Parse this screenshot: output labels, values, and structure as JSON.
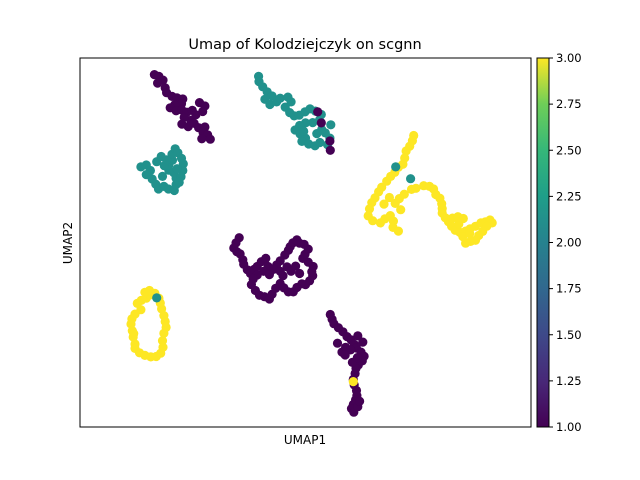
{
  "chart_data": {
    "type": "scatter",
    "title": "Umap of Kolodziejczyk on scgnn",
    "xlabel": "UMAP1",
    "ylabel": "UMAP2",
    "xlim": [
      0,
      100
    ],
    "ylim": [
      0,
      100
    ],
    "colorbar": {
      "range": [
        1.0,
        3.0
      ],
      "colormap": "viridis",
      "ticks": [
        "1.00",
        "1.25",
        "1.50",
        "1.75",
        "2.00",
        "2.25",
        "2.50",
        "2.75",
        "3.00"
      ]
    },
    "grid": false,
    "colors": {
      "class1": "#440154",
      "class2": "#21918c",
      "class3": "#fde725"
    },
    "clusters": [
      {
        "value": 1,
        "points": [
          [
            16.5,
            95.5
          ],
          [
            17.5,
            95.0
          ],
          [
            18.4,
            94.0
          ],
          [
            17.2,
            93.2
          ],
          [
            18.9,
            91.9
          ],
          [
            19.2,
            90.6
          ],
          [
            20.4,
            89.6
          ],
          [
            21.5,
            89.2
          ],
          [
            22.8,
            88.9
          ],
          [
            22.5,
            87.6
          ],
          [
            21.0,
            87.3
          ],
          [
            20.0,
            86.5
          ],
          [
            21.3,
            85.7
          ],
          [
            22.6,
            85.9
          ],
          [
            23.7,
            85.3
          ],
          [
            24.9,
            85.8
          ],
          [
            26.5,
            87.9
          ],
          [
            27.7,
            87.0
          ],
          [
            27.2,
            85.5
          ],
          [
            25.7,
            84.6
          ],
          [
            24.6,
            83.1
          ],
          [
            23.1,
            83.9
          ],
          [
            22.6,
            82.1
          ],
          [
            24.0,
            81.4
          ],
          [
            25.3,
            82.3
          ],
          [
            26.3,
            81.1
          ],
          [
            27.7,
            81.3
          ],
          [
            27.3,
            79.8
          ],
          [
            28.3,
            79.2
          ],
          [
            27.0,
            78.1
          ],
          [
            28.9,
            78.0
          ]
        ]
      },
      {
        "value": 2,
        "points": [
          [
            39.6,
            95.0
          ],
          [
            39.7,
            93.6
          ],
          [
            40.5,
            92.2
          ],
          [
            41.5,
            90.8
          ],
          [
            42.6,
            89.7
          ],
          [
            41.0,
            88.8
          ],
          [
            42.1,
            87.4
          ],
          [
            43.6,
            88.1
          ],
          [
            44.4,
            89.1
          ],
          [
            46.1,
            89.4
          ],
          [
            46.8,
            88.1
          ],
          [
            45.5,
            86.7
          ],
          [
            46.5,
            85.2
          ],
          [
            47.5,
            84.3
          ],
          [
            48.6,
            84.5
          ],
          [
            49.9,
            85.4
          ],
          [
            51.0,
            86.2
          ],
          [
            52.2,
            85.6
          ],
          [
            53.5,
            84.7
          ],
          [
            53.1,
            83.2
          ],
          [
            51.6,
            82.5
          ],
          [
            50.0,
            82.4
          ],
          [
            48.7,
            81.7
          ],
          [
            47.7,
            80.5
          ],
          [
            48.8,
            79.4
          ],
          [
            50.0,
            78.3
          ],
          [
            49.2,
            77.4
          ],
          [
            50.7,
            76.7
          ],
          [
            52.1,
            76.2
          ],
          [
            53.2,
            77.1
          ],
          [
            54.9,
            76.5
          ],
          [
            55.4,
            78.3
          ],
          [
            54.4,
            79.7
          ],
          [
            53.6,
            80.6
          ],
          [
            55.6,
            81.9
          ],
          [
            52.5,
            79.5
          ],
          [
            49.6,
            80.1
          ]
        ]
      },
      {
        "value": 1,
        "points": [
          [
            52.7,
            85.4
          ],
          [
            53.5,
            82.4
          ],
          [
            55.4,
            77.5
          ],
          [
            55.5,
            75.0
          ]
        ]
      },
      {
        "value": 2,
        "points": [
          [
            13.5,
            70.5
          ],
          [
            14.7,
            71.0
          ],
          [
            15.6,
            69.5
          ],
          [
            14.7,
            68.4
          ],
          [
            16.0,
            67.2
          ],
          [
            16.8,
            65.8
          ],
          [
            17.4,
            64.5
          ],
          [
            18.6,
            65.2
          ],
          [
            19.6,
            64.5
          ],
          [
            20.9,
            64.1
          ],
          [
            21.3,
            65.7
          ],
          [
            21.3,
            67.4
          ],
          [
            20.8,
            68.9
          ],
          [
            19.7,
            69.6
          ],
          [
            19.7,
            71.0
          ],
          [
            20.5,
            72.3
          ],
          [
            20.4,
            73.9
          ],
          [
            21.1,
            75.4
          ],
          [
            21.7,
            74.3
          ],
          [
            22.5,
            72.8
          ],
          [
            22.9,
            71.3
          ],
          [
            22.8,
            69.5
          ],
          [
            22.4,
            67.8
          ],
          [
            22.0,
            66.3
          ],
          [
            21.5,
            70.0
          ],
          [
            18.7,
            70.8
          ],
          [
            17.0,
            71.9
          ],
          [
            18.0,
            73.3
          ],
          [
            19.2,
            72.4
          ],
          [
            18.3,
            67.9
          ]
        ]
      },
      {
        "value": 1,
        "points": [
          [
            35.3,
            51.3
          ],
          [
            34.6,
            49.9
          ],
          [
            34.1,
            48.5
          ],
          [
            34.8,
            47.5
          ],
          [
            35.5,
            46.9
          ],
          [
            36.1,
            45.3
          ],
          [
            36.3,
            44.1
          ],
          [
            37.1,
            42.6
          ],
          [
            37.8,
            41.6
          ],
          [
            38.6,
            42.7
          ],
          [
            39.3,
            43.5
          ],
          [
            40.2,
            44.8
          ],
          [
            41.2,
            45.7
          ],
          [
            41.7,
            43.5
          ],
          [
            40.7,
            42.2
          ],
          [
            39.3,
            41.2
          ],
          [
            38.4,
            40.1
          ],
          [
            38.0,
            38.6
          ],
          [
            38.9,
            37.0
          ],
          [
            39.8,
            35.7
          ],
          [
            40.9,
            35.3
          ],
          [
            42.0,
            34.7
          ],
          [
            42.6,
            36.0
          ],
          [
            43.4,
            37.6
          ],
          [
            44.4,
            38.9
          ],
          [
            45.2,
            37.7
          ],
          [
            46.2,
            36.6
          ],
          [
            47.3,
            36.6
          ],
          [
            48.1,
            37.8
          ],
          [
            49.2,
            38.8
          ],
          [
            50.0,
            38.6
          ],
          [
            50.9,
            39.6
          ],
          [
            51.6,
            41.0
          ],
          [
            51.4,
            42.1
          ],
          [
            51.7,
            43.5
          ],
          [
            50.6,
            44.7
          ],
          [
            49.4,
            45.7
          ],
          [
            49.9,
            46.8
          ],
          [
            50.6,
            48.2
          ],
          [
            49.7,
            49.5
          ],
          [
            48.7,
            49.8
          ],
          [
            48.1,
            50.7
          ],
          [
            47.2,
            49.9
          ],
          [
            46.6,
            48.9
          ],
          [
            46.2,
            47.9
          ],
          [
            45.4,
            46.6
          ],
          [
            44.4,
            45.0
          ],
          [
            43.6,
            43.9
          ],
          [
            42.9,
            42.7
          ],
          [
            42.0,
            41.3
          ],
          [
            45.9,
            43.4
          ],
          [
            46.8,
            42.2
          ],
          [
            47.8,
            43.6
          ],
          [
            48.7,
            41.6
          ],
          [
            45.0,
            41.0
          ],
          [
            44.4,
            42.2
          ]
        ]
      },
      {
        "value": 3,
        "points": [
          [
            74.0,
            79.0
          ],
          [
            73.7,
            77.6
          ],
          [
            73.1,
            76.1
          ],
          [
            72.3,
            74.8
          ],
          [
            72.0,
            72.9
          ],
          [
            71.6,
            71.2
          ],
          [
            70.6,
            70.4
          ],
          [
            69.8,
            69.0
          ],
          [
            68.9,
            67.9
          ],
          [
            68.0,
            66.6
          ],
          [
            66.9,
            65.0
          ],
          [
            66.2,
            63.7
          ],
          [
            65.4,
            62.1
          ],
          [
            64.7,
            60.8
          ],
          [
            64.2,
            59.1
          ],
          [
            63.9,
            57.2
          ],
          [
            64.9,
            55.9
          ],
          [
            66.6,
            55.3
          ],
          [
            67.6,
            56.4
          ],
          [
            68.8,
            57.3
          ],
          [
            69.5,
            55.8
          ],
          [
            69.4,
            54.1
          ],
          [
            70.6,
            53.1
          ],
          [
            69.9,
            60.6
          ],
          [
            70.8,
            61.9
          ],
          [
            71.9,
            63.1
          ],
          [
            73.5,
            64.4
          ],
          [
            74.5,
            64.7
          ],
          [
            76.2,
            65.4
          ],
          [
            77.5,
            65.2
          ],
          [
            78.4,
            64.5
          ],
          [
            78.9,
            63.0
          ],
          [
            79.8,
            62.0
          ],
          [
            80.2,
            60.5
          ],
          [
            80.3,
            59.2
          ],
          [
            80.3,
            58.0
          ],
          [
            81.0,
            56.7
          ],
          [
            81.7,
            55.6
          ],
          [
            82.4,
            54.4
          ],
          [
            83.2,
            53.3
          ],
          [
            84.2,
            52.8
          ],
          [
            85.5,
            53.1
          ],
          [
            86.5,
            53.7
          ],
          [
            87.7,
            54.4
          ],
          [
            88.9,
            55.3
          ],
          [
            89.9,
            55.6
          ],
          [
            90.9,
            56.1
          ],
          [
            91.4,
            55.3
          ],
          [
            90.2,
            54.4
          ],
          [
            89.3,
            53.0
          ],
          [
            88.4,
            51.9
          ],
          [
            87.7,
            50.6
          ],
          [
            86.6,
            50.3
          ],
          [
            85.5,
            49.8
          ],
          [
            84.9,
            51.6
          ],
          [
            86.4,
            52.4
          ],
          [
            82.6,
            56.6
          ],
          [
            83.8,
            57.0
          ],
          [
            85.0,
            56.5
          ],
          [
            84.0,
            55.0
          ],
          [
            71.1,
            58.9
          ],
          [
            67.4,
            60.4
          ],
          [
            68.6,
            62.2
          ]
        ]
      },
      {
        "value": 2,
        "points": [
          [
            70.0,
            70.5
          ],
          [
            73.3,
            67.3
          ]
        ]
      },
      {
        "value": 3,
        "points": [
          [
            12.7,
            33.5
          ],
          [
            13.6,
            34.3
          ],
          [
            14.7,
            34.9
          ],
          [
            15.6,
            35.8
          ],
          [
            13.5,
            31.8
          ],
          [
            12.2,
            30.6
          ],
          [
            11.5,
            29.3
          ],
          [
            11.3,
            27.9
          ],
          [
            11.6,
            26.1
          ],
          [
            11.8,
            24.4
          ],
          [
            12.2,
            22.5
          ],
          [
            12.2,
            21.3
          ],
          [
            13.2,
            20.1
          ],
          [
            14.4,
            19.4
          ],
          [
            15.7,
            19.0
          ],
          [
            16.9,
            19.1
          ],
          [
            17.9,
            20.0
          ],
          [
            18.4,
            21.6
          ],
          [
            18.3,
            23.4
          ],
          [
            18.6,
            25.4
          ],
          [
            19.1,
            27.0
          ],
          [
            18.9,
            28.6
          ],
          [
            18.6,
            30.2
          ],
          [
            18.1,
            32.0
          ],
          [
            17.8,
            33.6
          ],
          [
            17.5,
            34.9
          ],
          [
            16.6,
            36.2
          ],
          [
            15.4,
            37.0
          ],
          [
            14.4,
            36.5
          ],
          [
            11.9,
            25.3
          ]
        ]
      },
      {
        "value": 2,
        "points": [
          [
            17.0,
            35.0
          ]
        ]
      },
      {
        "value": 1,
        "points": [
          [
            55.5,
            30.5
          ],
          [
            55.9,
            29.2
          ],
          [
            56.3,
            28.0
          ],
          [
            57.3,
            26.9
          ],
          [
            58.3,
            25.8
          ],
          [
            59.2,
            24.5
          ],
          [
            60.1,
            23.6
          ],
          [
            60.8,
            22.4
          ],
          [
            61.3,
            21.4
          ],
          [
            62.3,
            20.3
          ],
          [
            63.0,
            19.2
          ],
          [
            62.6,
            17.9
          ],
          [
            61.7,
            16.8
          ],
          [
            61.2,
            15.9
          ],
          [
            61.0,
            14.5
          ],
          [
            60.6,
            12.9
          ],
          [
            60.8,
            11.4
          ],
          [
            61.3,
            9.9
          ],
          [
            61.4,
            8.5
          ],
          [
            61.1,
            7.4
          ],
          [
            60.6,
            6.1
          ],
          [
            60.2,
            5.0
          ],
          [
            60.7,
            4.0
          ],
          [
            61.6,
            5.5
          ],
          [
            62.0,
            7.0
          ],
          [
            58.1,
            20.3
          ],
          [
            58.9,
            21.6
          ],
          [
            60.0,
            20.9
          ],
          [
            58.8,
            19.5
          ],
          [
            60.4,
            17.5
          ],
          [
            61.5,
            18.8
          ],
          [
            57.1,
            22.7
          ],
          [
            61.6,
            24.7
          ],
          [
            62.7,
            23.0
          ]
        ]
      },
      {
        "value": 3,
        "points": [
          [
            60.6,
            12.3
          ]
        ]
      }
    ]
  }
}
